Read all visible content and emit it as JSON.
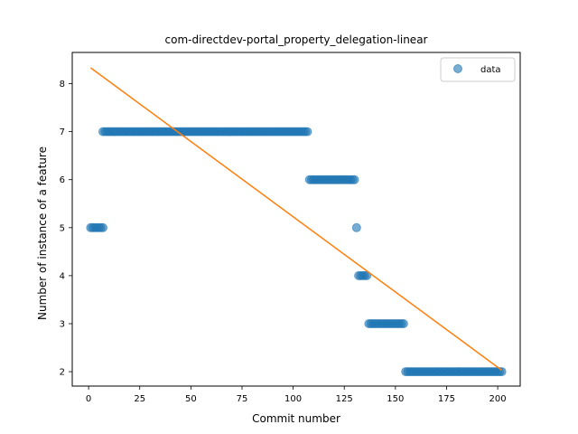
{
  "chart_data": {
    "type": "scatter",
    "title": "com-directdev-portal_property_delegation-linear",
    "xlabel": "Commit number",
    "ylabel": "Number of instance of a feature",
    "xlim": [
      -8,
      211
    ],
    "ylim": [
      1.7,
      8.65
    ],
    "xticks": [
      0,
      25,
      50,
      75,
      100,
      125,
      150,
      175,
      200
    ],
    "yticks": [
      2,
      3,
      4,
      5,
      6,
      7,
      8
    ],
    "grid": false,
    "legend": {
      "placement": "top-right",
      "entries": [
        "data"
      ]
    },
    "colors": {
      "data": "#1f77b4",
      "fit": "#ff7f0e"
    },
    "series": [
      {
        "name": "data",
        "kind": "scatter",
        "segments": [
          {
            "x_start": 1,
            "x_end": 7,
            "y": 5
          },
          {
            "x_start": 7,
            "x_end": 107,
            "y": 7
          },
          {
            "x_start": 108,
            "x_end": 130,
            "y": 6
          },
          {
            "x_start": 131,
            "x_end": 131,
            "y": 5
          },
          {
            "x_start": 132,
            "x_end": 136,
            "y": 4
          },
          {
            "x_start": 137,
            "x_end": 154,
            "y": 3
          },
          {
            "x_start": 155,
            "x_end": 202,
            "y": 2
          }
        ]
      },
      {
        "kind": "line",
        "x": [
          1,
          202
        ],
        "y": [
          8.33,
          2.03
        ]
      }
    ]
  }
}
